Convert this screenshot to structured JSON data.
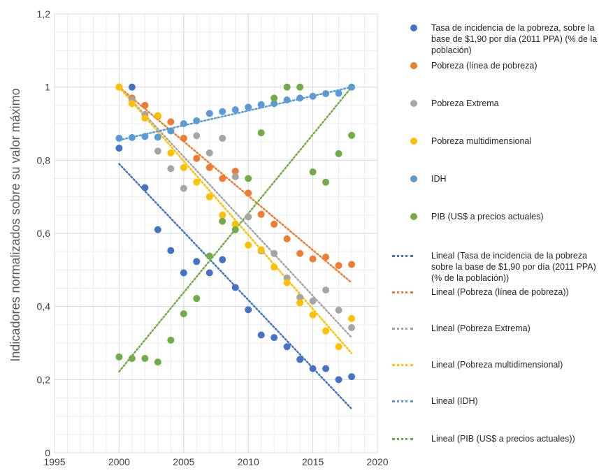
{
  "chart_data": {
    "type": "scatter",
    "ylabel": "Indicadores normalizados sobre su valor máximo",
    "xlim": [
      1995,
      2020
    ],
    "ylim": [
      0,
      1.2
    ],
    "xticks": [
      1995,
      2000,
      2005,
      2010,
      2015,
      2020
    ],
    "yticks": [
      0,
      0.2,
      0.4,
      0.6,
      0.8,
      1,
      1.2
    ],
    "ytick_labels": [
      "0",
      "0,2",
      "0,4",
      "0,6",
      "0,8",
      "1",
      "1,2"
    ],
    "grid": true,
    "legend_position": "right",
    "series": [
      {
        "name": "Tasa de incidencia de la pobreza, sobre la base de $1,90 por día (2011 PPA) (% de la población)",
        "color": "#4472C4",
        "x": [
          2000,
          2001,
          2002,
          2003,
          2004,
          2005,
          2006,
          2007,
          2008,
          2009,
          2010,
          2011,
          2012,
          2013,
          2014,
          2015,
          2016,
          2017,
          2018
        ],
        "y": [
          0.833,
          1.0,
          0.725,
          0.61,
          0.553,
          0.492,
          0.523,
          0.492,
          0.528,
          0.452,
          0.391,
          0.322,
          0.315,
          0.29,
          0.255,
          0.23,
          0.23,
          0.2,
          0.208
        ],
        "trend": {
          "name": "Lineal (Tasa de incidencia de la pobreza sobre la base de $1,90 por día (2011 PPA) (% de la población))",
          "x": [
            2000,
            2018
          ],
          "y": [
            0.79,
            0.12
          ]
        }
      },
      {
        "name": "Pobreza (línea de pobreza)",
        "color": "#ED7D31",
        "x": [
          2000,
          2001,
          2002,
          2003,
          2004,
          2005,
          2006,
          2007,
          2008,
          2009,
          2010,
          2011,
          2012,
          2013,
          2014,
          2015,
          2016,
          2017,
          2018
        ],
        "y": [
          1.0,
          0.97,
          0.95,
          0.92,
          0.905,
          0.86,
          0.805,
          0.78,
          0.75,
          0.77,
          0.71,
          0.652,
          0.625,
          0.585,
          0.545,
          0.53,
          0.535,
          0.512,
          0.515
        ],
        "trend": {
          "name": "Lineal (Pobreza (línea de pobreza))",
          "x": [
            2000,
            2018
          ],
          "y": [
            1.0,
            0.465
          ]
        }
      },
      {
        "name": "Pobreza Extrema",
        "color": "#A5A5A5",
        "x": [
          2000,
          2001,
          2002,
          2003,
          2004,
          2005,
          2006,
          2007,
          2008,
          2009,
          2010,
          2011,
          2012,
          2013,
          2014,
          2015,
          2016,
          2017,
          2018
        ],
        "y": [
          1.0,
          0.965,
          0.925,
          0.825,
          0.777,
          0.723,
          0.867,
          0.82,
          0.86,
          0.755,
          0.645,
          0.552,
          0.545,
          0.478,
          0.425,
          0.415,
          0.445,
          0.39,
          0.342
        ],
        "trend": {
          "name": "Lineal (Pobreza Extrema)",
          "x": [
            2000,
            2018
          ],
          "y": [
            1.0,
            0.315
          ]
        }
      },
      {
        "name": "Pobreza multidimensional",
        "color": "#FFC000",
        "x": [
          2000,
          2001,
          2002,
          2003,
          2004,
          2005,
          2006,
          2007,
          2008,
          2009,
          2010,
          2011,
          2012,
          2013,
          2014,
          2015,
          2016,
          2017,
          2018
        ],
        "y": [
          1.0,
          0.955,
          0.915,
          0.922,
          0.82,
          0.78,
          0.74,
          0.7,
          0.65,
          0.625,
          0.568,
          0.555,
          0.508,
          0.465,
          0.41,
          0.377,
          0.333,
          0.29,
          0.367
        ],
        "trend": {
          "name": "Lineal (Pobreza multidimensional)",
          "x": [
            2000,
            2018
          ],
          "y": [
            1.0,
            0.272
          ]
        }
      },
      {
        "name": "IDH",
        "color": "#5B9BD5",
        "x": [
          2000,
          2001,
          2002,
          2003,
          2004,
          2005,
          2006,
          2007,
          2008,
          2009,
          2010,
          2011,
          2012,
          2013,
          2014,
          2015,
          2016,
          2017,
          2018
        ],
        "y": [
          0.86,
          0.862,
          0.865,
          0.863,
          0.88,
          0.9,
          0.908,
          0.928,
          0.933,
          0.938,
          0.945,
          0.952,
          0.955,
          0.965,
          0.97,
          0.975,
          0.982,
          0.983,
          1.0
        ],
        "trend": {
          "name": "Lineal (IDH)",
          "x": [
            2000,
            2018
          ],
          "y": [
            0.855,
            1.0
          ]
        }
      },
      {
        "name": "PIB (US$ a precios actuales)",
        "color": "#70AD47",
        "x": [
          2000,
          2001,
          2002,
          2003,
          2004,
          2005,
          2006,
          2007,
          2008,
          2009,
          2010,
          2011,
          2012,
          2013,
          2014,
          2015,
          2016,
          2017,
          2018
        ],
        "y": [
          0.262,
          0.258,
          0.258,
          0.248,
          0.308,
          0.38,
          0.422,
          0.538,
          0.633,
          0.61,
          0.75,
          0.875,
          0.97,
          1.0,
          1.0,
          0.768,
          0.74,
          0.818,
          0.868
        ],
        "trend": {
          "name": "Lineal (PIB (US$ a precios actuales))",
          "x": [
            2000,
            2018
          ],
          "y": [
            0.222,
            1.0
          ]
        }
      }
    ]
  }
}
